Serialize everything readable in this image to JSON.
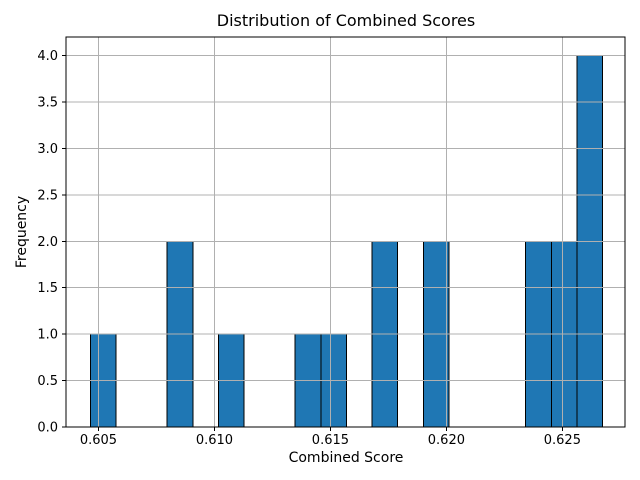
{
  "figure": {
    "background": "#ffffff"
  },
  "chart_data": {
    "type": "bar",
    "variant": "histogram",
    "title": "Distribution of Combined Scores",
    "xlabel": "Combined Score",
    "ylabel": "Frequency",
    "bin_start": 0.60465,
    "bin_width": 0.001104,
    "counts": [
      1,
      0,
      0,
      2,
      0,
      1,
      0,
      0,
      1,
      1,
      0,
      2,
      0,
      2,
      0,
      0,
      0,
      2,
      2,
      4
    ],
    "bin_values_approx": [
      0.6046,
      0.6057,
      0.6068,
      0.6079,
      0.609,
      0.6101,
      0.6112,
      0.6123,
      0.6135,
      0.6146,
      0.6157,
      0.6168,
      0.6179,
      0.619,
      0.6201,
      0.6212,
      0.6223,
      0.6234,
      0.6245,
      0.6256
    ],
    "total_observations": 18,
    "xlim": [
      0.6036,
      0.6277
    ],
    "ylim": [
      0,
      4.2
    ],
    "x_ticks": [
      0.605,
      0.61,
      0.615,
      0.62,
      0.625
    ],
    "x_tick_labels": [
      "0.605",
      "0.610",
      "0.615",
      "0.620",
      "0.625"
    ],
    "y_ticks": [
      0.0,
      0.5,
      1.0,
      1.5,
      2.0,
      2.5,
      3.0,
      3.5,
      4.0
    ],
    "y_tick_labels": [
      "0.0",
      "0.5",
      "1.0",
      "1.5",
      "2.0",
      "2.5",
      "3.0",
      "3.5",
      "4.0"
    ],
    "grid": true,
    "grid_above_bars": true,
    "legend": "none",
    "colors": {
      "bar_fill": "#1f77b4",
      "bar_edge": "#000000",
      "grid": "#b0b0b0",
      "axis": "#000000",
      "text": "#000000",
      "background": "#ffffff"
    }
  }
}
